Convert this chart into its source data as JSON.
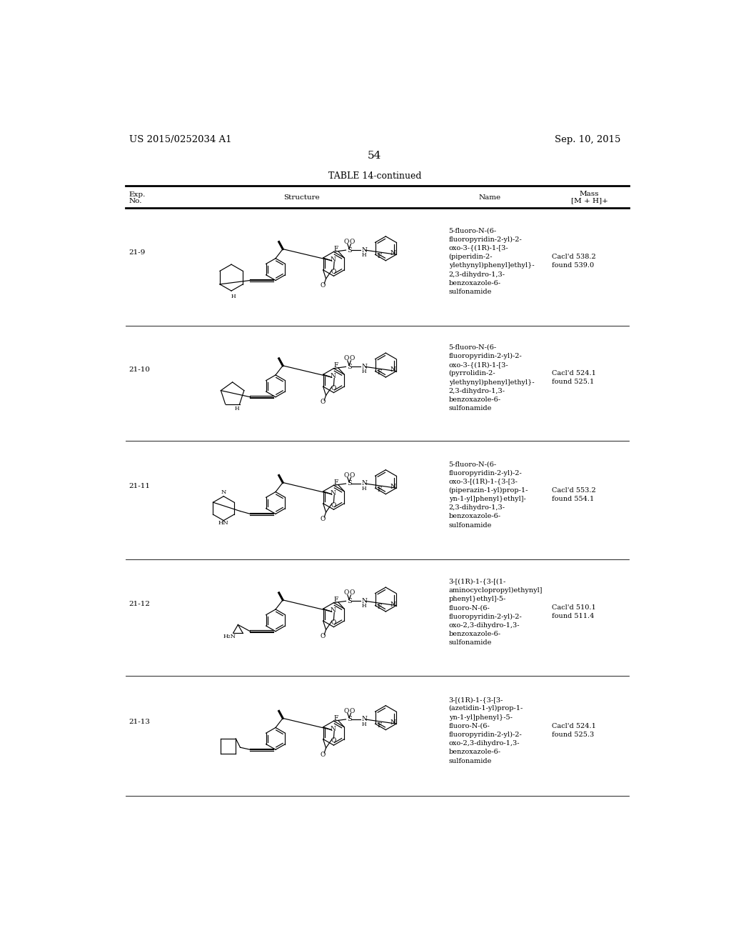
{
  "background_color": "#ffffff",
  "header_left": "US 2015/0252034 A1",
  "header_right": "Sep. 10, 2015",
  "page_number": "54",
  "table_title": "TABLE 14-continued",
  "rows": [
    {
      "exp_no": "21-9",
      "name": "5-fluoro-N-(6-\nfluoropyridin-2-yl)-2-\noxo-3-{(1R)-1-[3-\n(piperidin-2-\nylethynyl)phenyl]ethyl}-\n2,3-dihydro-1,3-\nbenzoxazole-6-\nsulfonamide",
      "mass": "Cacl'd 538.2\nfound 539.0"
    },
    {
      "exp_no": "21-10",
      "name": "5-fluoro-N-(6-\nfluoropyridin-2-yl)-2-\noxo-3-{(1R)-1-[3-\n(pyrrolidin-2-\nylethynyl)phenyl]ethyl}-\n2,3-dihydro-1,3-\nbenzoxazole-6-\nsulfonamide",
      "mass": "Cacl'd 524.1\nfound 525.1"
    },
    {
      "exp_no": "21-11",
      "name": "5-fluoro-N-(6-\nfluoropyridin-2-yl)-2-\noxo-3-[(1R)-1-{3-[3-\n(piperazin-1-yl)prop-1-\nyn-1-yl]phenyl}ethyl]-\n2,3-dihydro-1,3-\nbenzoxazole-6-\nsulfonamide",
      "mass": "Cacl'd 553.2\nfound 554.1"
    },
    {
      "exp_no": "21-12",
      "name": "3-[(1R)-1-{3-[(1-\naminocyclopropyl)ethynyl]\nphenyl}ethyl]-5-\nfluoro-N-(6-\nfluoropyridin-2-yl)-2-\noxo-2,3-dihydro-1,3-\nbenzoxazole-6-\nsulfonamide",
      "mass": "Cacl'd 510.1\nfound 511.4"
    },
    {
      "exp_no": "21-13",
      "name": "3-[(1R)-1-{3-[3-\n(azetidin-1-yl)prop-1-\nyn-1-yl]phenyl}-5-\nfluoro-N-(6-\nfluoropyridin-2-yl)-2-\noxo-2,3-dihydro-1,3-\nbenzoxazole-6-\nsulfonamide",
      "mass": "Cacl'd 524.1\nfound 525.3"
    }
  ]
}
